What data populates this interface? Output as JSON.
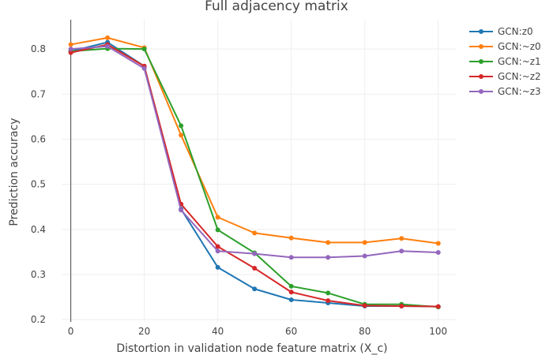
{
  "chart_data": {
    "type": "line",
    "title": "Full adjacency matrix",
    "xlabel": "Distortion in validation node feature matrix (X_c)",
    "ylabel": "Prediction accuracy",
    "xlim": [
      -2.5,
      105
    ],
    "ylim": [
      0.195,
      0.865
    ],
    "xticks": [
      0,
      20,
      40,
      60,
      80,
      100
    ],
    "yticks": [
      0.2,
      0.3,
      0.4,
      0.5,
      0.6,
      0.7,
      0.8
    ],
    "grid": true,
    "legend_position": "top-right",
    "x": [
      0,
      10,
      20,
      30,
      40,
      50,
      60,
      70,
      80,
      90,
      100
    ],
    "series": [
      {
        "name": "GCN:z0",
        "color": "#1f77b4",
        "values": [
          0.795,
          0.815,
          0.762,
          0.445,
          0.316,
          0.268,
          0.244,
          0.237,
          0.23,
          0.23,
          0.229
        ]
      },
      {
        "name": "GCN:~z0",
        "color": "#ff7f0e",
        "values": [
          0.81,
          0.825,
          0.803,
          0.609,
          0.427,
          0.392,
          0.381,
          0.371,
          0.371,
          0.38,
          0.369
        ]
      },
      {
        "name": "GCN:~z1",
        "color": "#2ca02c",
        "values": [
          0.795,
          0.801,
          0.8,
          0.63,
          0.399,
          0.348,
          0.274,
          0.259,
          0.234,
          0.234,
          0.228
        ]
      },
      {
        "name": "GCN:~z2",
        "color": "#d62728",
        "values": [
          0.792,
          0.81,
          0.762,
          0.456,
          0.362,
          0.314,
          0.261,
          0.242,
          0.231,
          0.23,
          0.229
        ]
      },
      {
        "name": "GCN:~z3",
        "color": "#9467bd",
        "values": [
          0.8,
          0.806,
          0.757,
          0.443,
          0.352,
          0.346,
          0.338,
          0.338,
          0.341,
          0.352,
          0.349
        ]
      }
    ]
  }
}
